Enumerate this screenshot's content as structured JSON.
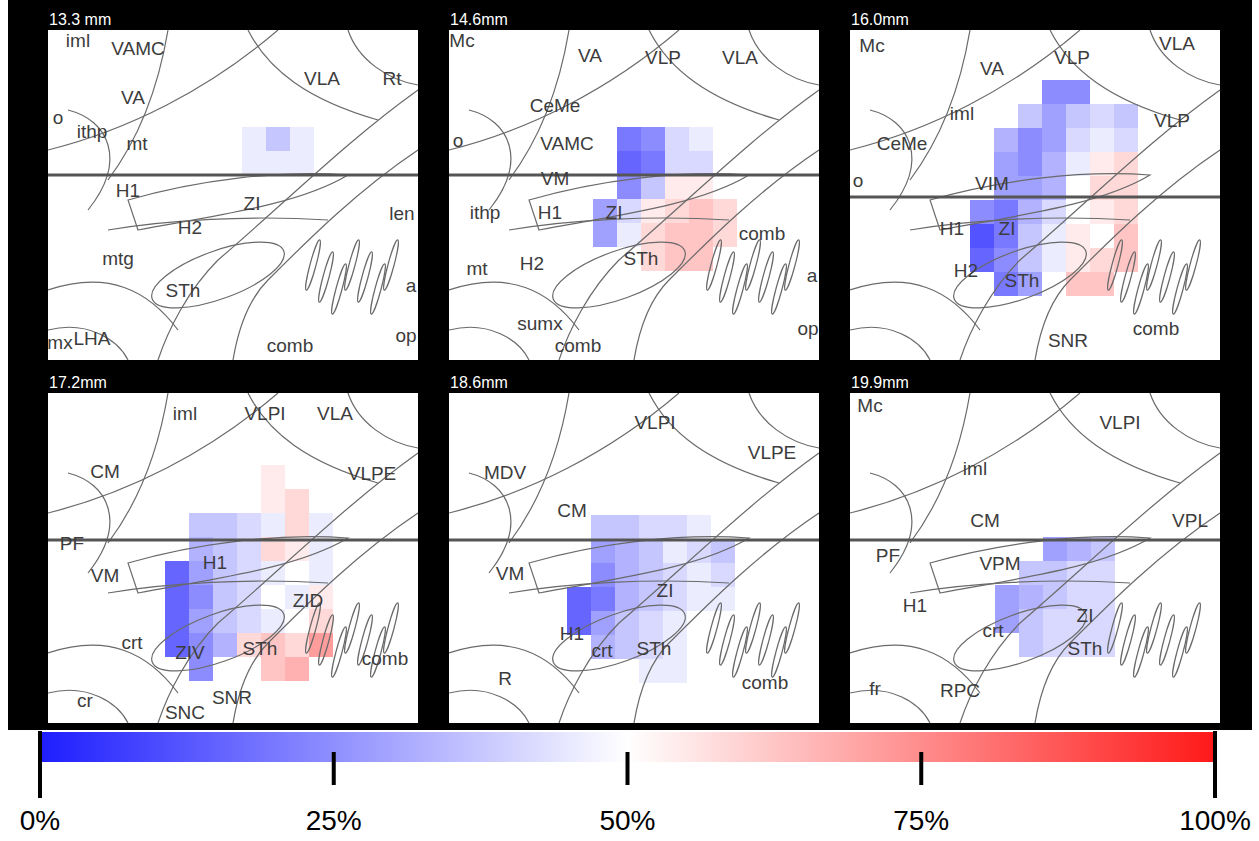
{
  "chart_data": {
    "type": "heatmap_panels",
    "panels": [
      {
        "title": "13.3 mm",
        "labels": [
          "iml",
          "VAMC",
          "VLA",
          "Rt",
          "VA",
          "o",
          "ithp",
          "mt",
          "H1",
          "ZI",
          "H2",
          "len",
          "mtg",
          "STh",
          "a",
          "LHA",
          "mx",
          "comb",
          "op"
        ],
        "cells": [
          [
            45,
            35,
            45
          ],
          [
            45,
            45,
            45
          ]
        ]
      },
      {
        "title": "14.6mm",
        "labels": [
          "Mc",
          "VA",
          "VLP",
          "VLA",
          "CeMe",
          "o",
          "VAMC",
          "VM",
          "ithp",
          "H1",
          "ZI",
          "comb",
          "mt",
          "H2",
          "STh",
          "a",
          "sumx",
          "comb",
          "op"
        ],
        "cells": [
          [
            null,
            15,
            20,
            40,
            45,
            null
          ],
          [
            null,
            10,
            15,
            40,
            40,
            null
          ],
          [
            null,
            20,
            35,
            55,
            55,
            null
          ],
          [
            25,
            40,
            55,
            60,
            65,
            60
          ],
          [
            25,
            45,
            60,
            65,
            65,
            60
          ],
          [
            null,
            null,
            60,
            65,
            65,
            null
          ]
        ]
      },
      {
        "title": "16.0mm",
        "labels": [
          "Mc",
          "VA",
          "VLP",
          "VLA",
          "iml",
          "VLP",
          "CeMe",
          "o",
          "VIM",
          "H1",
          "ZI",
          "H2",
          "STh",
          "comb",
          "SNR"
        ],
        "cells": [
          [
            null,
            null,
            null,
            20,
            20,
            null,
            null
          ],
          [
            null,
            null,
            35,
            25,
            35,
            40,
            35
          ],
          [
            null,
            30,
            20,
            25,
            40,
            45,
            40
          ],
          [
            null,
            25,
            20,
            30,
            45,
            55,
            60
          ],
          [
            null,
            25,
            25,
            30,
            50,
            60,
            60
          ],
          [
            20,
            15,
            30,
            40,
            50,
            55,
            60
          ],
          [
            5,
            15,
            35,
            45,
            55,
            50,
            65
          ],
          [
            10,
            20,
            35,
            45,
            55,
            60,
            65
          ],
          [
            null,
            15,
            25,
            null,
            65,
            65,
            null
          ]
        ]
      },
      {
        "title": "17.2mm",
        "labels": [
          "iml",
          "VLPI",
          "VLA",
          "CM",
          "VLPE",
          "PF",
          "VM",
          "H1",
          "ZID",
          "crt",
          "ZIV",
          "STh",
          "comb",
          "cr",
          "SNR",
          "SNC"
        ],
        "cells": [
          [
            null,
            null,
            null,
            null,
            55,
            null,
            null
          ],
          [
            null,
            null,
            null,
            null,
            55,
            60,
            null
          ],
          [
            null,
            35,
            35,
            40,
            45,
            60,
            45
          ],
          [
            null,
            30,
            35,
            40,
            60,
            55,
            45
          ],
          [
            10,
            25,
            35,
            40,
            45,
            50,
            45
          ],
          [
            10,
            20,
            35,
            40,
            50,
            45,
            55
          ],
          [
            10,
            25,
            35,
            40,
            45,
            50,
            60
          ],
          [
            10,
            20,
            30,
            60,
            65,
            60,
            75
          ],
          [
            null,
            20,
            null,
            null,
            65,
            70,
            null
          ]
        ]
      },
      {
        "title": "18.6mm",
        "labels": [
          "VLPI",
          "VLPE",
          "MDV",
          "CM",
          "VM",
          "ZI",
          "H1",
          "crt",
          "STh",
          "comb",
          "R"
        ],
        "cells": [
          [
            null,
            35,
            35,
            40,
            40,
            45,
            null
          ],
          [
            null,
            25,
            30,
            35,
            45,
            40,
            35
          ],
          [
            null,
            20,
            30,
            35,
            40,
            45,
            40
          ],
          [
            10,
            15,
            30,
            35,
            40,
            45,
            45
          ],
          [
            10,
            25,
            35,
            40,
            45,
            null,
            null
          ],
          [
            null,
            30,
            35,
            40,
            45,
            null,
            null
          ],
          [
            null,
            null,
            null,
            45,
            45,
            null,
            null
          ]
        ]
      },
      {
        "title": "19.9mm",
        "labels": [
          "Mc",
          "VLPI",
          "iml",
          "CM",
          "VPL",
          "PF",
          "VPM",
          "H1",
          "ZI",
          "crt",
          "STh",
          "fr",
          "RPC"
        ],
        "cells": [
          [
            null,
            null,
            25,
            30,
            35
          ],
          [
            null,
            35,
            35,
            40,
            40
          ],
          [
            25,
            30,
            35,
            40,
            40
          ],
          [
            25,
            35,
            40,
            40,
            40
          ],
          [
            null,
            35,
            40,
            40,
            40
          ]
        ]
      }
    ],
    "colorbar": {
      "range": [
        0,
        100
      ],
      "ticks": [
        {
          "value": 0,
          "label": "0%"
        },
        {
          "value": 25,
          "label": "25%"
        },
        {
          "value": 50,
          "label": "50%"
        },
        {
          "value": 75,
          "label": "75%"
        },
        {
          "value": 100,
          "label": "100%"
        }
      ]
    }
  }
}
